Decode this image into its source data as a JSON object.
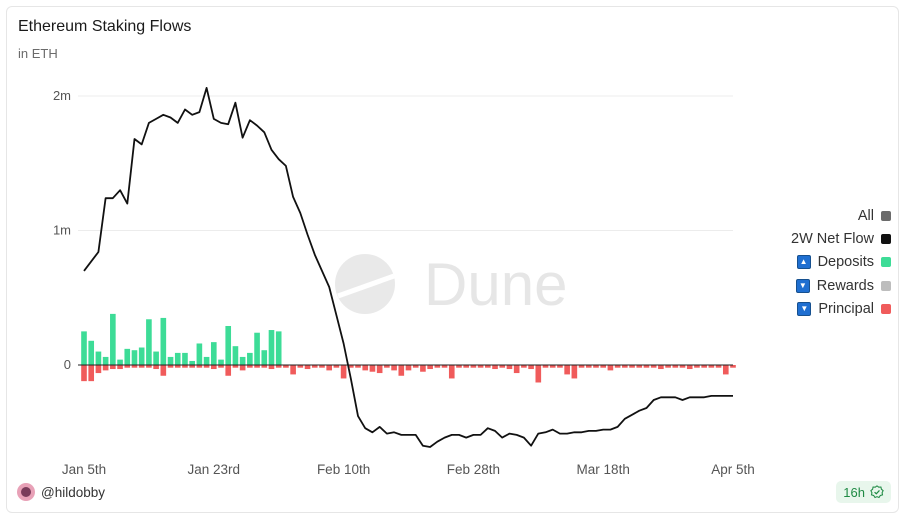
{
  "header": {
    "title": "Ethereum Staking Flows",
    "subtitle": "in ETH"
  },
  "watermark": {
    "text": "Dune"
  },
  "legend": {
    "items": [
      {
        "label": "All",
        "toggle": "none",
        "color": "#6b6b6b"
      },
      {
        "label": "2W Net Flow",
        "toggle": "none",
        "color": "#111111"
      },
      {
        "label": "Deposits",
        "toggle": "up",
        "color": "#3ddc97"
      },
      {
        "label": "Rewards",
        "toggle": "down",
        "color": "#bdbdbd"
      },
      {
        "label": "Principal",
        "toggle": "down",
        "color": "#f05b5b"
      }
    ]
  },
  "footer": {
    "author": "@hildobby",
    "freshness": "16h",
    "freshness_icon": "check-badge-icon"
  },
  "colors": {
    "deposits": "#3ddc97",
    "principal": "#f05b5b",
    "line": "#111111",
    "grid": "#ececec"
  },
  "chart_data": {
    "type": "bar",
    "title": "Ethereum Staking Flows",
    "ylabel": "",
    "xlabel": "",
    "ylim": [
      -700000,
      2150000
    ],
    "y_ticks": [
      {
        "value": 0,
        "label": "0"
      },
      {
        "value": 1000000,
        "label": "1m"
      },
      {
        "value": 2000000,
        "label": "2m"
      }
    ],
    "x_ticks": [
      {
        "index": 0,
        "label": "Jan 5th"
      },
      {
        "index": 18,
        "label": "Jan 23rd"
      },
      {
        "index": 36,
        "label": "Feb 10th"
      },
      {
        "index": 54,
        "label": "Feb 28th"
      },
      {
        "index": 72,
        "label": "Mar 18th"
      },
      {
        "index": 90,
        "label": "Apr 5th"
      }
    ],
    "x_start": "2024-01-05",
    "num_days": 91,
    "series": [
      {
        "name": "Deposits",
        "type": "bar",
        "values": [
          250000,
          180000,
          100000,
          60000,
          380000,
          40000,
          120000,
          110000,
          130000,
          340000,
          100000,
          350000,
          60000,
          90000,
          90000,
          30000,
          160000,
          60000,
          170000,
          40000,
          290000,
          140000,
          60000,
          90000,
          240000,
          110000,
          260000,
          250000,
          0,
          0,
          0,
          0,
          0,
          0,
          0,
          0,
          0,
          0,
          0,
          0,
          0,
          0,
          0,
          0,
          0,
          0,
          0,
          0,
          0,
          0,
          0,
          0,
          0,
          0,
          0,
          0,
          0,
          0,
          0,
          0,
          0,
          0,
          0,
          0,
          0,
          0,
          0,
          0,
          0,
          0,
          0,
          0,
          0,
          0,
          0,
          0,
          0,
          0,
          0,
          0,
          0,
          0,
          0,
          0,
          0,
          0,
          0,
          0,
          0,
          0,
          0
        ]
      },
      {
        "name": "Principal",
        "type": "bar",
        "values": [
          -120000,
          -120000,
          -60000,
          -40000,
          -30000,
          -30000,
          -20000,
          -20000,
          -20000,
          -20000,
          -30000,
          -80000,
          -20000,
          -20000,
          -20000,
          -20000,
          -20000,
          -20000,
          -30000,
          -20000,
          -80000,
          -20000,
          -40000,
          -20000,
          -20000,
          -20000,
          -30000,
          -20000,
          -20000,
          -70000,
          -20000,
          -30000,
          -20000,
          -20000,
          -40000,
          -20000,
          -100000,
          -20000,
          -20000,
          -40000,
          -50000,
          -60000,
          -20000,
          -40000,
          -80000,
          -40000,
          -20000,
          -50000,
          -30000,
          -20000,
          -20000,
          -100000,
          -20000,
          -20000,
          -20000,
          -20000,
          -20000,
          -30000,
          -20000,
          -30000,
          -60000,
          -20000,
          -30000,
          -130000,
          -20000,
          -20000,
          -20000,
          -70000,
          -100000,
          -20000,
          -20000,
          -20000,
          -20000,
          -40000,
          -20000,
          -20000,
          -20000,
          -20000,
          -20000,
          -20000,
          -30000,
          -20000,
          -20000,
          -20000,
          -30000,
          -20000,
          -20000,
          -20000,
          -20000,
          -70000,
          -20000
        ]
      },
      {
        "name": "2W Net Flow",
        "type": "line",
        "values": [
          700000,
          770000,
          840000,
          1240000,
          1240000,
          1300000,
          1200000,
          1680000,
          1640000,
          1800000,
          1830000,
          1860000,
          1840000,
          1800000,
          1900000,
          1860000,
          1880000,
          2060000,
          1830000,
          1800000,
          1790000,
          1950000,
          1690000,
          1820000,
          1780000,
          1730000,
          1600000,
          1530000,
          1480000,
          1250000,
          1130000,
          970000,
          820000,
          700000,
          580000,
          370000,
          160000,
          -100000,
          -380000,
          -470000,
          -500000,
          -460000,
          -510000,
          -500000,
          -520000,
          -520000,
          -520000,
          -600000,
          -610000,
          -570000,
          -540000,
          -520000,
          -520000,
          -540000,
          -520000,
          -520000,
          -470000,
          -490000,
          -540000,
          -510000,
          -520000,
          -540000,
          -600000,
          -510000,
          -500000,
          -480000,
          -510000,
          -510000,
          -500000,
          -500000,
          -490000,
          -490000,
          -480000,
          -480000,
          -460000,
          -400000,
          -370000,
          -340000,
          -320000,
          -260000,
          -240000,
          -240000,
          -240000,
          -260000,
          -240000,
          -240000,
          -240000,
          -230000,
          -230000,
          -230000,
          -230000
        ]
      }
    ]
  }
}
